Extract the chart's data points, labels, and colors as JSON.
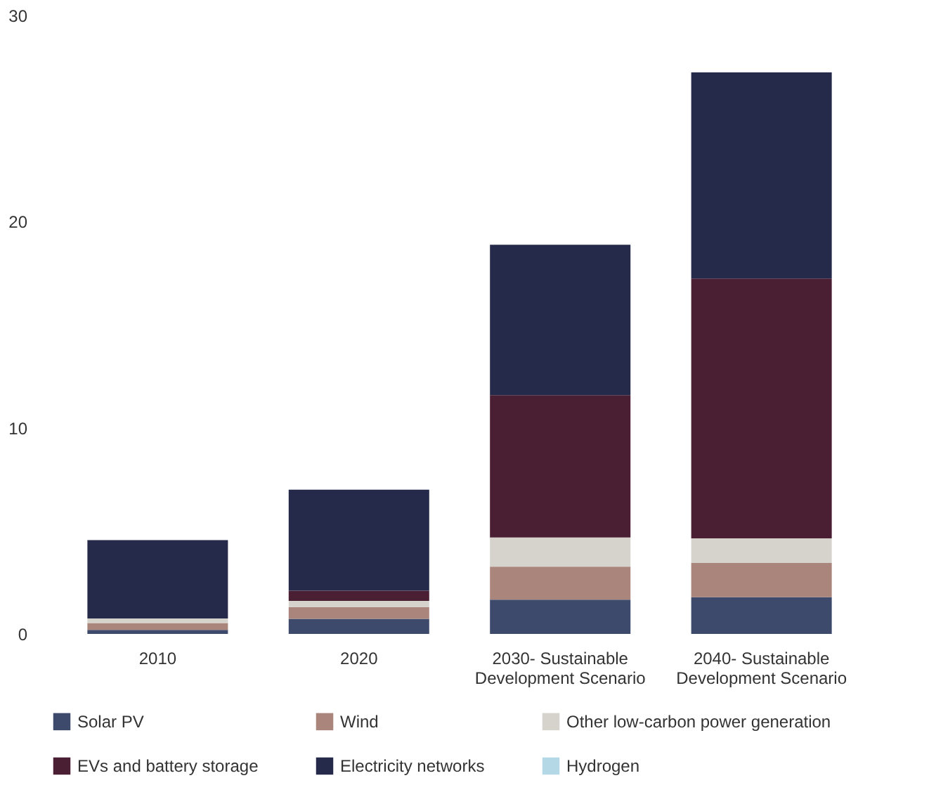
{
  "chart_data": {
    "type": "bar",
    "stacked": true,
    "categories": [
      "2010",
      "2020",
      "2030- Sustainable Development Scenario",
      "2040- Sustainable Development Scenario"
    ],
    "series": [
      {
        "name": "Solar PV",
        "color": "#3d4a6b",
        "values": [
          0.2,
          0.73,
          1.66,
          1.78
        ]
      },
      {
        "name": "Wind",
        "color": "#a9857c",
        "values": [
          0.33,
          0.57,
          1.6,
          1.66
        ]
      },
      {
        "name": "Other low-carbon power generation",
        "color": "#d6d2cc",
        "values": [
          0.22,
          0.3,
          1.42,
          1.2
        ]
      },
      {
        "name": "EVs and battery storage",
        "color": "#4a1e33",
        "values": [
          0,
          0.5,
          6.9,
          12.6
        ]
      },
      {
        "name": "Electricity networks",
        "color": "#262a4a",
        "values": [
          3.8,
          4.9,
          7.3,
          10.0
        ]
      },
      {
        "name": "Hydrogen",
        "color": "#b5d8e6",
        "values": [
          0,
          0,
          0,
          0
        ]
      }
    ],
    "ylim": [
      0,
      30
    ],
    "yticks": [
      0,
      10,
      20,
      30
    ],
    "grid": false,
    "legend": "bottom"
  }
}
